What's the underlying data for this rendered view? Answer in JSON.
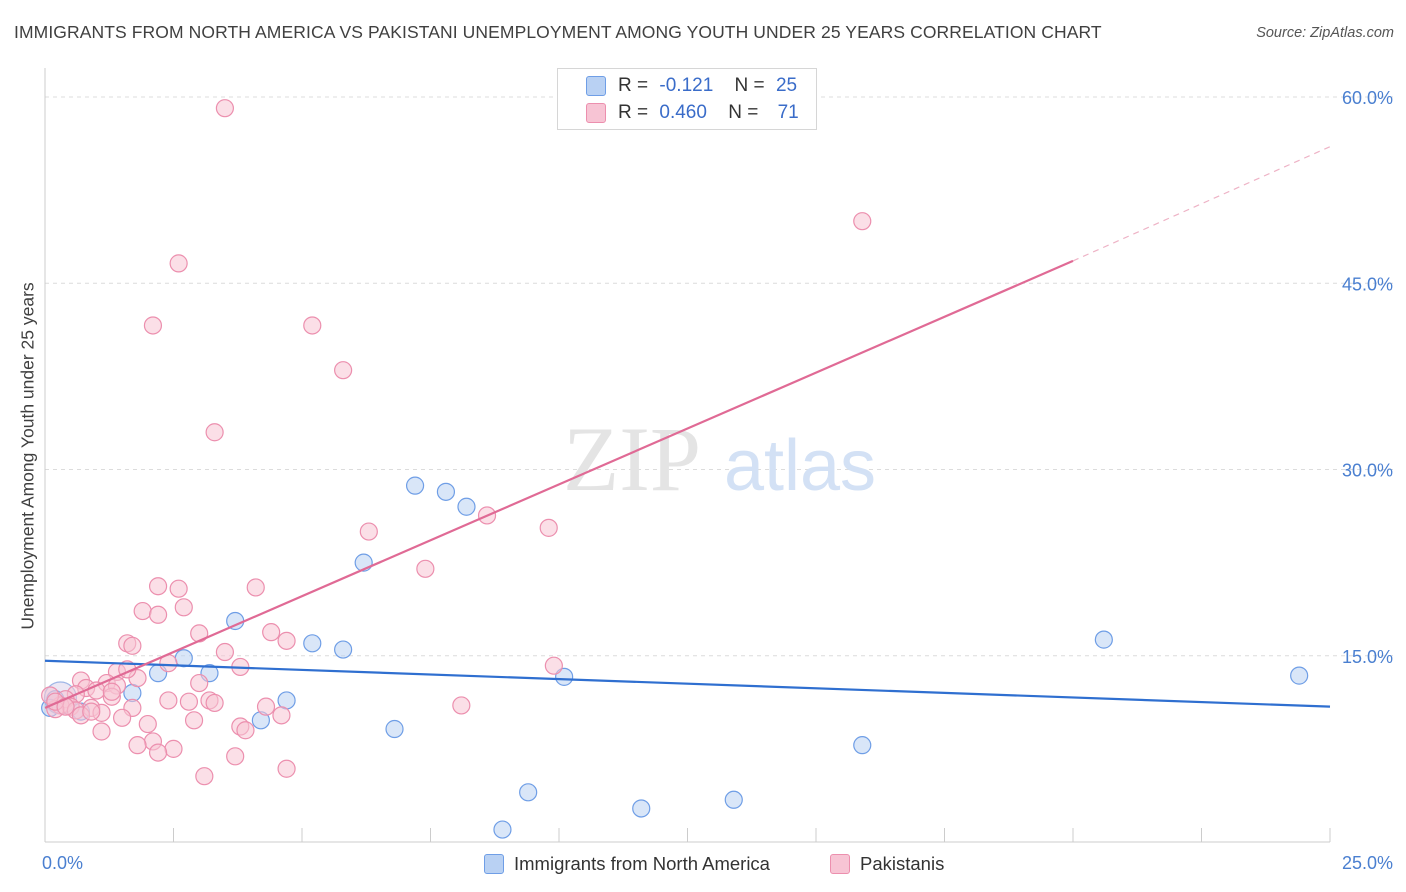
{
  "title": "IMMIGRANTS FROM NORTH AMERICA VS PAKISTANI UNEMPLOYMENT AMONG YOUTH UNDER 25 YEARS CORRELATION CHART",
  "source": "Source: ZipAtlas.com",
  "watermark": {
    "zip": "ZIP",
    "atlas": "atlas"
  },
  "legend": {
    "r_label": "R =",
    "n_label": "N =",
    "series": [
      {
        "r": "-0.121",
        "n": "25"
      },
      {
        "r": "0.460",
        "n": "71"
      }
    ]
  },
  "chart_data": {
    "type": "scatter",
    "title": "IMMIGRANTS FROM NORTH AMERICA VS PAKISTANI UNEMPLOYMENT AMONG YOUTH UNDER 25 YEARS CORRELATION CHART",
    "xlabel": "",
    "ylabel": "Unemployment Among Youth under 25 years",
    "xlim": [
      0,
      25
    ],
    "ylim": [
      0,
      60
    ],
    "x_tick_labels": [
      "0.0%",
      "25.0%"
    ],
    "y_ticks": [
      15,
      30,
      45,
      60
    ],
    "y_tick_labels": [
      "15.0%",
      "30.0%",
      "45.0%",
      "60.0%"
    ],
    "grid": true,
    "legend_position": "top-center",
    "series": [
      {
        "name": "Immigrants from North America",
        "color": "#6f9ee6",
        "fill": "#b9d1f3",
        "trend": {
          "x": [
            0,
            25
          ],
          "y": [
            14.6,
            10.9
          ],
          "color": "#2f6fd0"
        },
        "points": [
          {
            "x": 0.2,
            "y": 11.5
          },
          {
            "x": 0.7,
            "y": 10.5
          },
          {
            "x": 1.7,
            "y": 12.0
          },
          {
            "x": 2.2,
            "y": 13.6
          },
          {
            "x": 2.7,
            "y": 14.8
          },
          {
            "x": 3.2,
            "y": 13.6
          },
          {
            "x": 3.7,
            "y": 17.8
          },
          {
            "x": 4.2,
            "y": 9.8
          },
          {
            "x": 4.7,
            "y": 11.4
          },
          {
            "x": 5.2,
            "y": 16.0
          },
          {
            "x": 5.8,
            "y": 15.5
          },
          {
            "x": 6.2,
            "y": 22.5
          },
          {
            "x": 6.8,
            "y": 9.1
          },
          {
            "x": 7.2,
            "y": 28.7
          },
          {
            "x": 7.8,
            "y": 28.2
          },
          {
            "x": 8.2,
            "y": 27.0
          },
          {
            "x": 8.9,
            "y": 1.0
          },
          {
            "x": 9.4,
            "y": 4.0
          },
          {
            "x": 10.1,
            "y": 13.3
          },
          {
            "x": 11.6,
            "y": 2.7
          },
          {
            "x": 13.4,
            "y": 3.4
          },
          {
            "x": 15.9,
            "y": 7.8
          },
          {
            "x": 20.6,
            "y": 16.3
          },
          {
            "x": 24.4,
            "y": 13.4
          },
          {
            "x": 0.1,
            "y": 10.8
          }
        ]
      },
      {
        "name": "Pakistanis",
        "color": "#ec8fae",
        "fill": "#f7c4d4",
        "trend": {
          "x": [
            0,
            20
          ],
          "y": [
            10.8,
            46.8
          ],
          "dash_to": [
            25,
            56.0
          ],
          "color": "#e06a95"
        },
        "points": [
          {
            "x": 3.5,
            "y": 59.1
          },
          {
            "x": 15.9,
            "y": 50.0
          },
          {
            "x": 2.6,
            "y": 46.6
          },
          {
            "x": 2.1,
            "y": 41.6
          },
          {
            "x": 5.2,
            "y": 41.6
          },
          {
            "x": 5.8,
            "y": 38.0
          },
          {
            "x": 3.3,
            "y": 33.0
          },
          {
            "x": 8.6,
            "y": 26.3
          },
          {
            "x": 9.8,
            "y": 25.3
          },
          {
            "x": 6.3,
            "y": 25.0
          },
          {
            "x": 7.4,
            "y": 22.0
          },
          {
            "x": 2.2,
            "y": 20.6
          },
          {
            "x": 2.6,
            "y": 20.4
          },
          {
            "x": 4.1,
            "y": 20.5
          },
          {
            "x": 2.7,
            "y": 18.9
          },
          {
            "x": 1.9,
            "y": 18.6
          },
          {
            "x": 2.2,
            "y": 18.3
          },
          {
            "x": 3.0,
            "y": 16.8
          },
          {
            "x": 4.4,
            "y": 16.9
          },
          {
            "x": 4.7,
            "y": 16.2
          },
          {
            "x": 1.6,
            "y": 16.0
          },
          {
            "x": 1.7,
            "y": 15.8
          },
          {
            "x": 3.5,
            "y": 15.3
          },
          {
            "x": 2.4,
            "y": 14.4
          },
          {
            "x": 3.8,
            "y": 14.1
          },
          {
            "x": 9.9,
            "y": 14.2
          },
          {
            "x": 1.4,
            "y": 13.7
          },
          {
            "x": 1.8,
            "y": 13.2
          },
          {
            "x": 0.7,
            "y": 13.0
          },
          {
            "x": 1.2,
            "y": 12.8
          },
          {
            "x": 1.4,
            "y": 12.6
          },
          {
            "x": 0.8,
            "y": 12.4
          },
          {
            "x": 1.0,
            "y": 12.2
          },
          {
            "x": 0.6,
            "y": 11.9
          },
          {
            "x": 1.3,
            "y": 11.7
          },
          {
            "x": 0.4,
            "y": 11.5
          },
          {
            "x": 2.4,
            "y": 11.4
          },
          {
            "x": 2.8,
            "y": 11.3
          },
          {
            "x": 3.2,
            "y": 11.4
          },
          {
            "x": 3.3,
            "y": 11.2
          },
          {
            "x": 0.3,
            "y": 11.0
          },
          {
            "x": 0.5,
            "y": 10.9
          },
          {
            "x": 0.9,
            "y": 10.8
          },
          {
            "x": 1.7,
            "y": 10.8
          },
          {
            "x": 4.3,
            "y": 10.9
          },
          {
            "x": 8.1,
            "y": 11.0
          },
          {
            "x": 0.2,
            "y": 10.7
          },
          {
            "x": 0.6,
            "y": 10.6
          },
          {
            "x": 1.1,
            "y": 10.4
          },
          {
            "x": 0.7,
            "y": 10.2
          },
          {
            "x": 4.6,
            "y": 10.2
          },
          {
            "x": 1.5,
            "y": 10.0
          },
          {
            "x": 2.9,
            "y": 9.8
          },
          {
            "x": 2.0,
            "y": 9.5
          },
          {
            "x": 3.8,
            "y": 9.3
          },
          {
            "x": 3.9,
            "y": 9.0
          },
          {
            "x": 1.1,
            "y": 8.9
          },
          {
            "x": 2.1,
            "y": 8.1
          },
          {
            "x": 1.8,
            "y": 7.8
          },
          {
            "x": 2.5,
            "y": 7.5
          },
          {
            "x": 2.2,
            "y": 7.2
          },
          {
            "x": 3.7,
            "y": 6.9
          },
          {
            "x": 4.7,
            "y": 5.9
          },
          {
            "x": 3.1,
            "y": 5.3
          },
          {
            "x": 0.1,
            "y": 11.8
          },
          {
            "x": 0.2,
            "y": 11.3
          },
          {
            "x": 0.4,
            "y": 10.9
          },
          {
            "x": 1.3,
            "y": 12.1
          },
          {
            "x": 3.0,
            "y": 12.8
          },
          {
            "x": 1.6,
            "y": 13.9
          },
          {
            "x": 0.9,
            "y": 10.5
          }
        ]
      }
    ]
  }
}
